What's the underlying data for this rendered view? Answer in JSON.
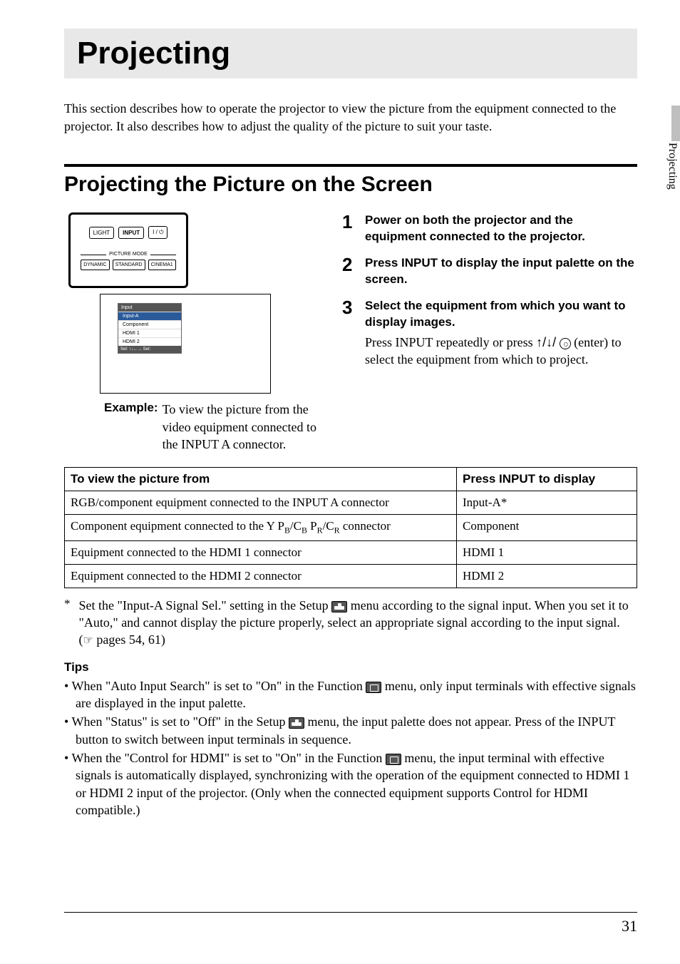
{
  "chapter": {
    "title": "Projecting"
  },
  "intro": "This section describes how to operate the projector to view the picture from the equipment connected to the projector. It also describes how to adjust the quality of the picture to suit your taste.",
  "section": {
    "title": "Projecting the Picture on the Screen"
  },
  "remote": {
    "btn_light": "LIGHT",
    "btn_input": "INPUT",
    "btn_power": "I /  ",
    "mode_label": "PICTURE MODE",
    "btn_dynamic": "DYNAMIC",
    "btn_standard": "STANDARD",
    "btn_cinema1": "CINEMA1"
  },
  "screen_menu": {
    "title": "Input",
    "items": [
      "Input-A",
      "Component",
      "HDMI 1",
      "HDMI 2"
    ],
    "selected_index": 0,
    "footer": "Sel: ↑↓←→  Set:"
  },
  "example": {
    "label": "Example:",
    "text": "To view the picture from the video equipment connected to the INPUT A connector."
  },
  "steps": [
    {
      "num": "1",
      "title": "Power on both the projector and the equipment connected to the projector."
    },
    {
      "num": "2",
      "title": "Press INPUT to display the input palette on the screen."
    },
    {
      "num": "3",
      "title": "Select the equipment from which you want to display images.",
      "body_pre": "Press INPUT repeatedly or press ",
      "body_arrows": "↑/↓/",
      "body_mid": " (enter) to select the equipment from which to project."
    }
  ],
  "table": {
    "header_source": "To view the picture from",
    "header_display": "Press INPUT to display",
    "rows": [
      {
        "source": "RGB/component equipment connected to the INPUT A connector",
        "display": "Input-A*"
      },
      {
        "source_html": true,
        "source_parts": [
          "Component equipment connected to the Y P",
          "B",
          "/C",
          "B",
          " P",
          "R",
          "/C",
          "R",
          " connector"
        ],
        "display": "Component"
      },
      {
        "source": "Equipment connected to the HDMI 1 connector",
        "display": "HDMI 1"
      },
      {
        "source": "Equipment connected to the HDMI 2 connector",
        "display": "HDMI 2"
      }
    ]
  },
  "footnote": {
    "mark": "*",
    "pre": "Set the \"Input-A Signal Sel.\" setting in the Setup ",
    "mid": " menu according to the signal input. When you set it to \"Auto,\" and cannot display the picture properly, select an appropriate signal according to the input signal. (",
    "pages": " pages 54,  61)"
  },
  "tips_heading": "Tips",
  "tips": [
    {
      "pre": "When \"Auto Input Search\" is set to \"On\" in the Function ",
      "icon": "func",
      "post": " menu, only input terminals with effective signals are displayed in the input palette."
    },
    {
      "pre": "When \"Status\" is set to \"Off\" in the Setup ",
      "icon": "setup",
      "post": " menu, the input palette does not appear. Press of the INPUT button to switch between input terminals in sequence."
    },
    {
      "pre": "When the \"Control for HDMI\" is set to \"On\" in the Function ",
      "icon": "func",
      "post": " menu, the input terminal with effective signals is automatically displayed, synchronizing with the operation of the equipment connected to HDMI 1 or HDMI 2 input of the projector. (Only when the connected equipment supports Control for HDMI compatible.)"
    }
  ],
  "side_tab": "Projecting",
  "page_number": "31",
  "colors": {
    "band_bg": "#e8e8e8",
    "tab_bg": "#bfbfbf",
    "menu_hl": "#2a5a9a"
  }
}
